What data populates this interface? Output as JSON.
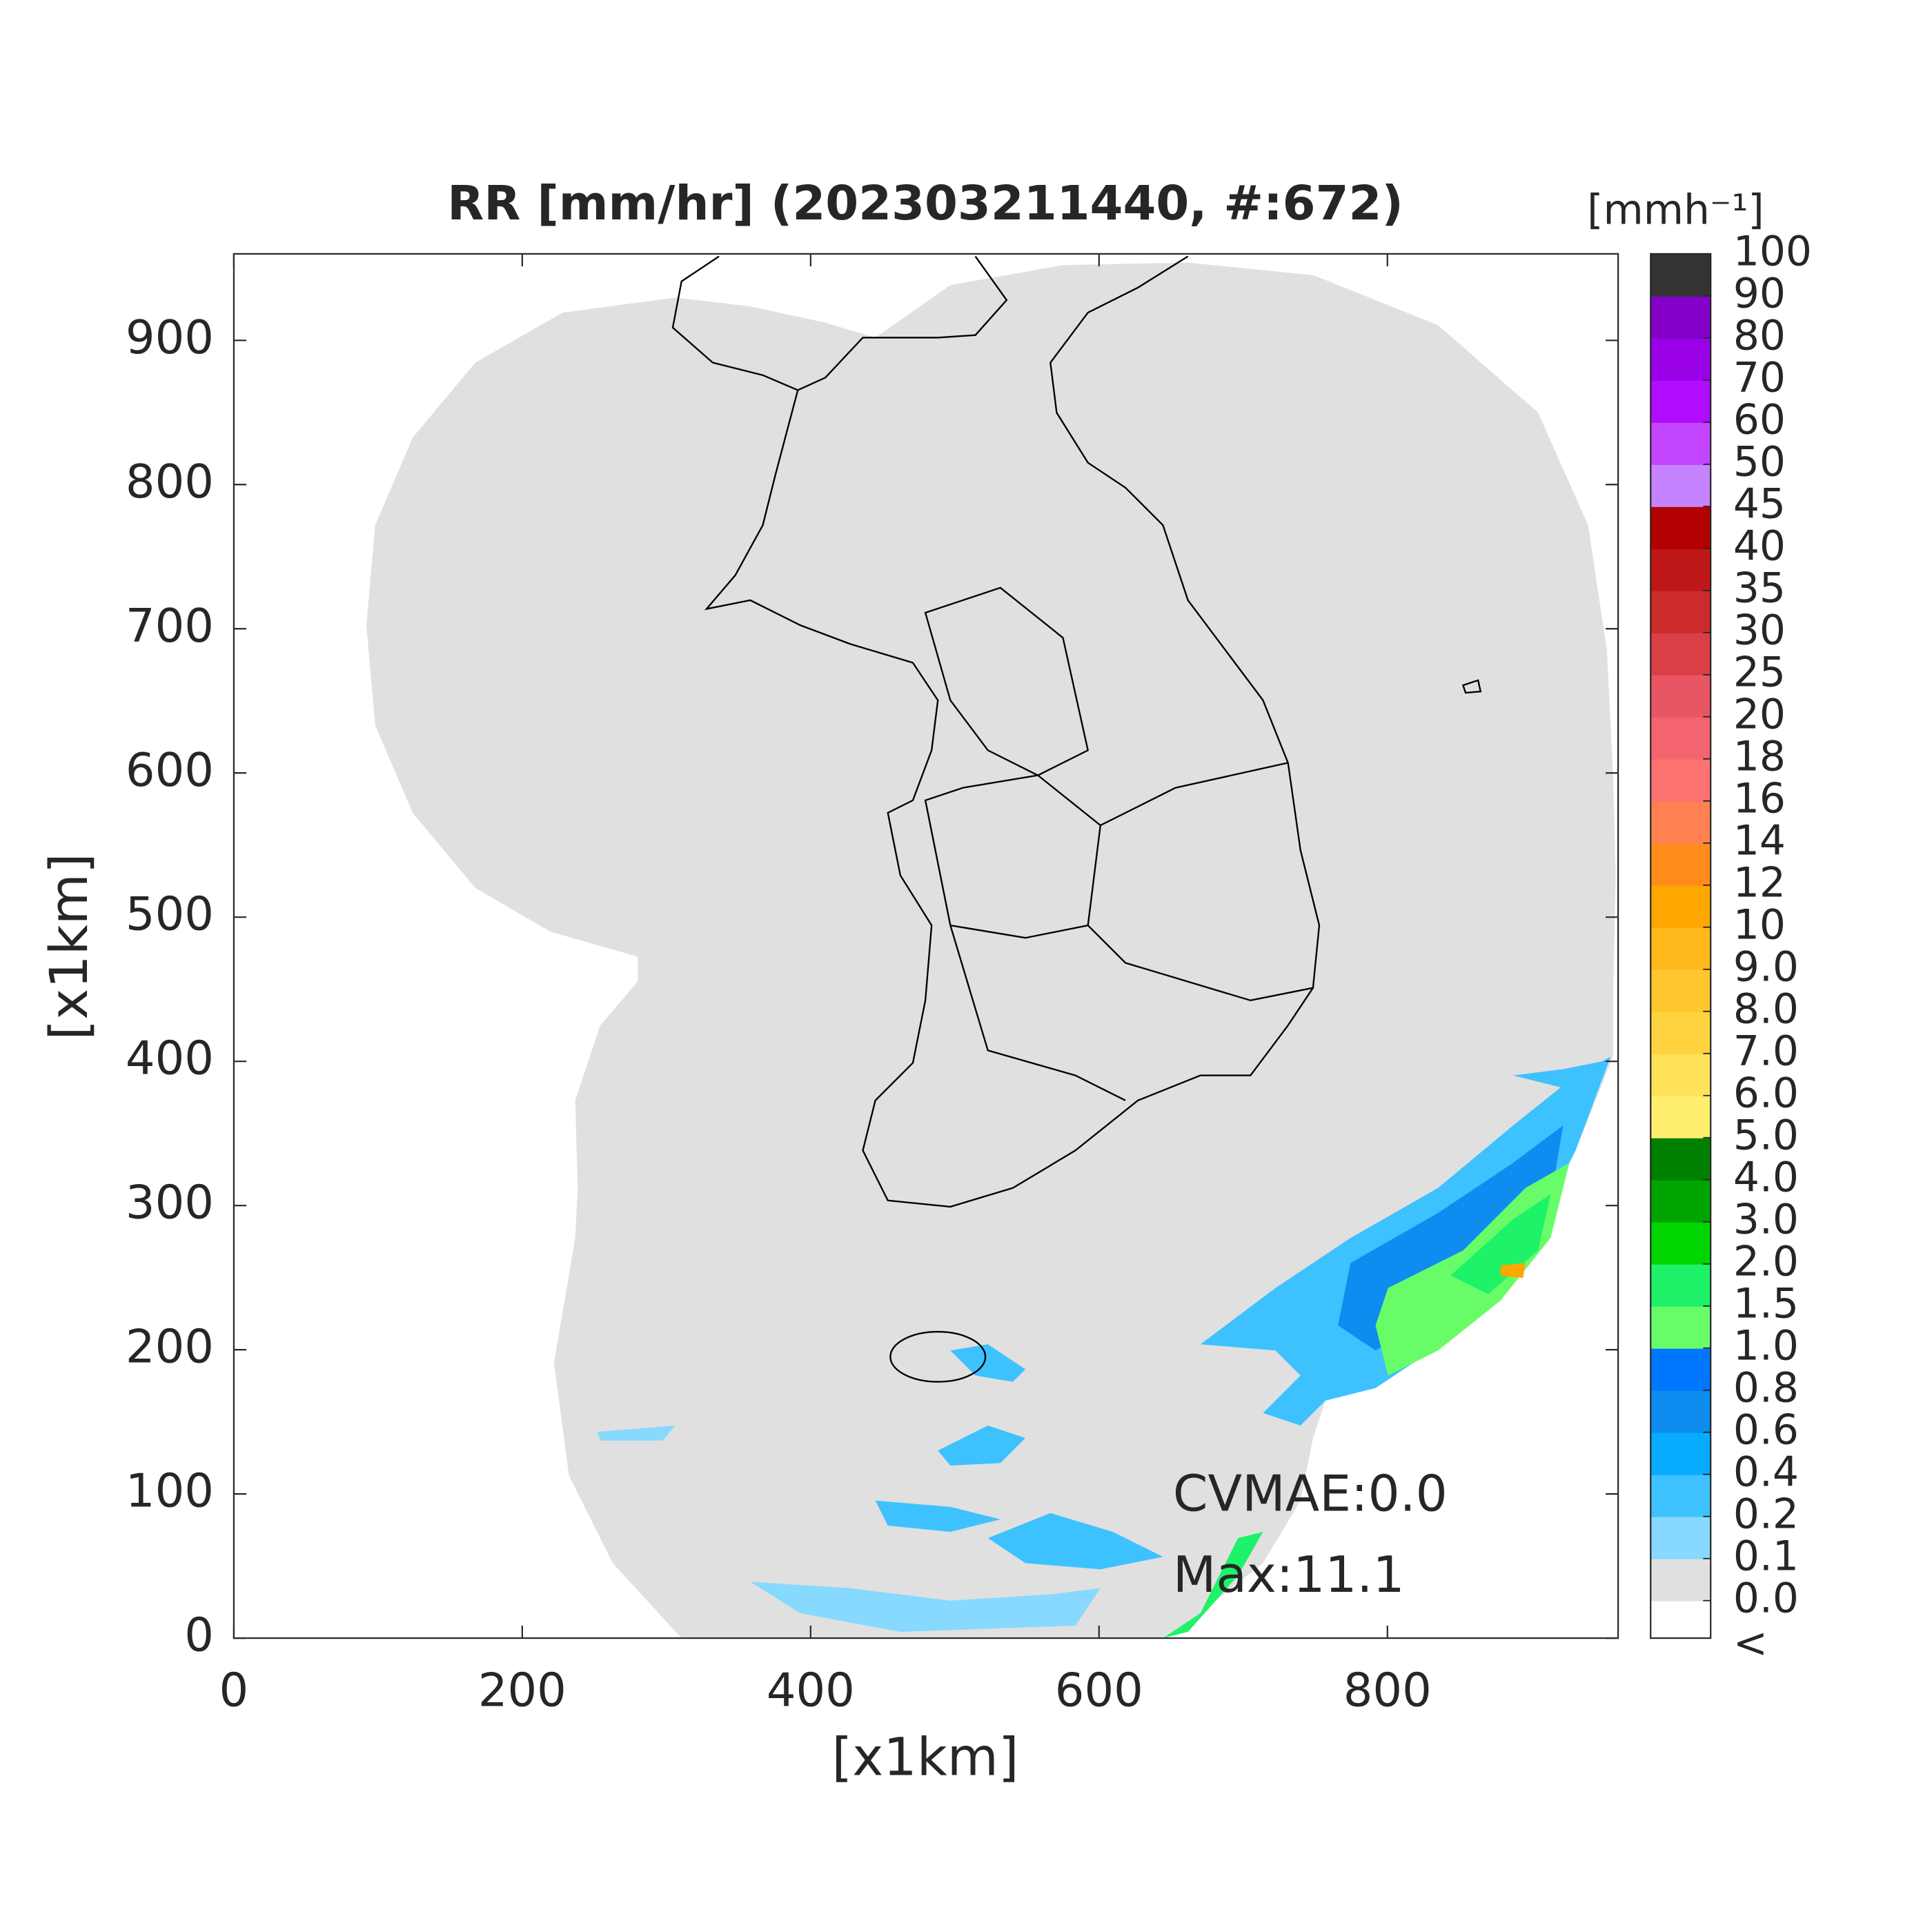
{
  "chart_data": {
    "type": "map",
    "title": "RR [mm/hr] (202303211440, #:672)",
    "x_label": "[x1km]",
    "y_label": "[x1km]",
    "xlim": [
      0,
      960
    ],
    "ylim": [
      0,
      960
    ],
    "xticks": [
      0,
      200,
      400,
      600,
      800
    ],
    "yticks": [
      0,
      100,
      200,
      300,
      400,
      500,
      600,
      700,
      800,
      900
    ],
    "annotations": [
      "CVMAE:0.0",
      "Max:11.1"
    ],
    "colorbar": {
      "label": "[mmh⁻¹]",
      "under_label": "<",
      "under_color": "#ffffff",
      "ticks": [
        {
          "value": 0,
          "label": "0.0"
        },
        0.1,
        0.2,
        0.4,
        0.6,
        0.8,
        {
          "value": 1,
          "label": "1.0"
        },
        1.5,
        {
          "value": 2,
          "label": "2.0"
        },
        {
          "value": 3,
          "label": "3.0"
        },
        {
          "value": 4,
          "label": "4.0"
        },
        {
          "value": 5,
          "label": "5.0"
        },
        {
          "value": 6,
          "label": "6.0"
        },
        {
          "value": 7,
          "label": "7.0"
        },
        {
          "value": 8,
          "label": "8.0"
        },
        {
          "value": 9,
          "label": "9.0"
        },
        10,
        12,
        14,
        16,
        18,
        20,
        25,
        30,
        35,
        40,
        45,
        50,
        60,
        70,
        80,
        90,
        100
      ],
      "colors": [
        "#e0e0e0",
        "#87d9ff",
        "#3ec1ff",
        "#07abff",
        "#0e8cf0",
        "#0077ff",
        "#69fc69",
        "#1ef269",
        "#00d500",
        "#00a400",
        "#008000",
        "#ffee6e",
        "#ffe15a",
        "#ffd33f",
        "#ffc62d",
        "#ffb91c",
        "#ffa700",
        "#ff8c1a",
        "#ff8050",
        "#ff7272",
        "#f3646e",
        "#e85563",
        "#da3f46",
        "#cc2b2b",
        "#bf1717",
        "#b30000",
        "#c683ff",
        "#c345ff",
        "#b10cff",
        "#9a00e6",
        "#8400c8",
        "#333333"
      ]
    }
  }
}
